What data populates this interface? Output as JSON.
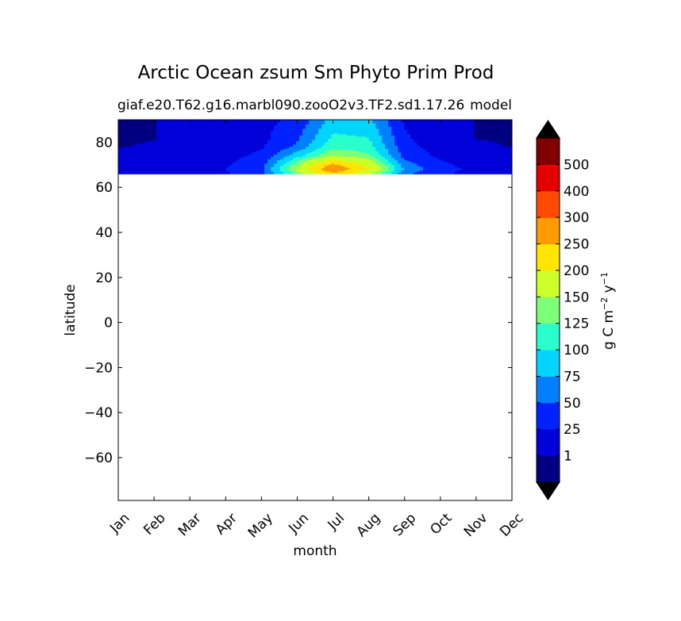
{
  "chart_data": {
    "type": "heatmap",
    "title": "Arctic Ocean zsum Sm Phyto Prim Prod",
    "subtitle_left": "giaf.e20.T62.g16.marbl090.zooO2v3.TF2.sd1.17.26",
    "subtitle_right": "model",
    "xlabel": "month",
    "ylabel": "latitude",
    "x_ticks": [
      "Jan",
      "Feb",
      "Mar",
      "Apr",
      "May",
      "Jun",
      "Jul",
      "Aug",
      "Sep",
      "Oct",
      "Nov",
      "Dec"
    ],
    "y_ticks": [
      80,
      60,
      40,
      20,
      0,
      -20,
      -40,
      -60
    ],
    "ylim": [
      -79,
      90
    ],
    "x_range": [
      1,
      12
    ],
    "data_lat_range": [
      66,
      90
    ],
    "colorbar": {
      "label": "g C m$^{-2}$ y$^{-1}$",
      "label_main": "g C m",
      "label_exp1": "−2",
      "label_mid": " y",
      "label_exp2": "−1",
      "tick_labels": [
        "1",
        "25",
        "50",
        "75",
        "100",
        "125",
        "150",
        "200",
        "250",
        "300",
        "400",
        "500"
      ],
      "levels": [
        0,
        1,
        25,
        50,
        75,
        100,
        125,
        150,
        200,
        250,
        300,
        400,
        500,
        600
      ],
      "colors": [
        "#000080",
        "#0000d8",
        "#0022ff",
        "#0080ff",
        "#00d4ff",
        "#29ffcd",
        "#7dff7a",
        "#cdff29",
        "#ffe500",
        "#ff9a00",
        "#ff4a00",
        "#e50000",
        "#800000"
      ],
      "extend": "both",
      "extend_color": "#000000"
    },
    "grid": false,
    "months": [
      1,
      2,
      3,
      4,
      5,
      6,
      7,
      8,
      9,
      10,
      11,
      12
    ],
    "lats": [
      90,
      86,
      82,
      78,
      74,
      70,
      68,
      66
    ],
    "values": [
      [
        0,
        0.5,
        8,
        12,
        18,
        30,
        85,
        80,
        20,
        8,
        0.5,
        0
      ],
      [
        0,
        0.5,
        8,
        12,
        18,
        40,
        95,
        90,
        25,
        10,
        0.5,
        0
      ],
      [
        0,
        0.5,
        8,
        12,
        18,
        45,
        105,
        100,
        28,
        12,
        0.5,
        0
      ],
      [
        0.5,
        2,
        10,
        15,
        22,
        55,
        120,
        110,
        32,
        15,
        3,
        0.5
      ],
      [
        5,
        8,
        12,
        18,
        30,
        90,
        150,
        130,
        40,
        20,
        10,
        8
      ],
      [
        10,
        12,
        15,
        22,
        40,
        140,
        260,
        180,
        60,
        30,
        15,
        12
      ],
      [
        12,
        15,
        20,
        25,
        45,
        160,
        300,
        200,
        70,
        35,
        18,
        15
      ],
      [
        12,
        15,
        18,
        22,
        40,
        130,
        230,
        160,
        55,
        30,
        15,
        12
      ]
    ]
  }
}
